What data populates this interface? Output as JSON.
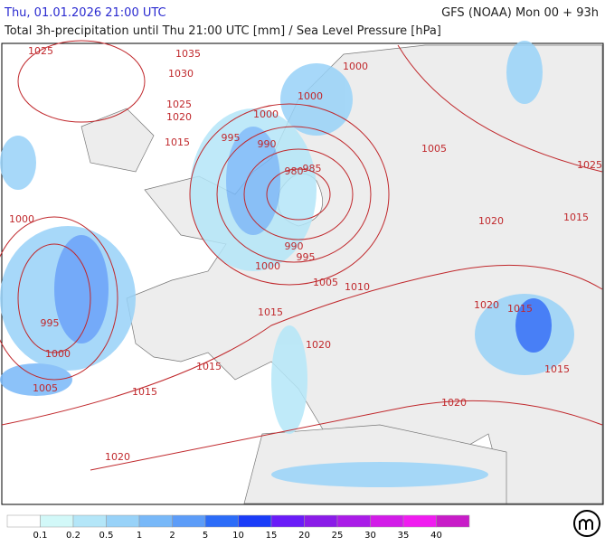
{
  "header": {
    "valid_time": "Thu, 01.01.2026 21:00 UTC",
    "model_run": "GFS (NOAA) Mon 00 + 93h",
    "subtitle": "Total 3h-precipitation until Thu 21:00 UTC [mm] / Sea Level Pressure [hPa]"
  },
  "map": {
    "isobar_labels": [
      "1025",
      "1035",
      "1030",
      "1025",
      "1020",
      "1015",
      "995",
      "1000",
      "990",
      "980",
      "985",
      "1000",
      "1000",
      "1005",
      "1025",
      "1020",
      "1015",
      "1000",
      "990",
      "995",
      "1000",
      "1005",
      "1010",
      "1015",
      "1020",
      "1020",
      "1015",
      "1015",
      "995",
      "1000",
      "1005",
      "1015",
      "1015",
      "1020",
      "1020"
    ]
  },
  "legend": {
    "colors": [
      "#ffffff",
      "#d2f8f8",
      "#b4e6f8",
      "#98d2f8",
      "#78b8f8",
      "#5c9cf8",
      "#2c6cf8",
      "#1a3cf8",
      "#6a1cf8",
      "#8a1ce8",
      "#aa1ce8",
      "#d21ce8",
      "#f01cf0",
      "#c81cc8"
    ],
    "labels": [
      "0.1",
      "0.2",
      "0.5",
      "1",
      "2",
      "5",
      "10",
      "15",
      "20",
      "25",
      "30",
      "35",
      "40"
    ]
  }
}
